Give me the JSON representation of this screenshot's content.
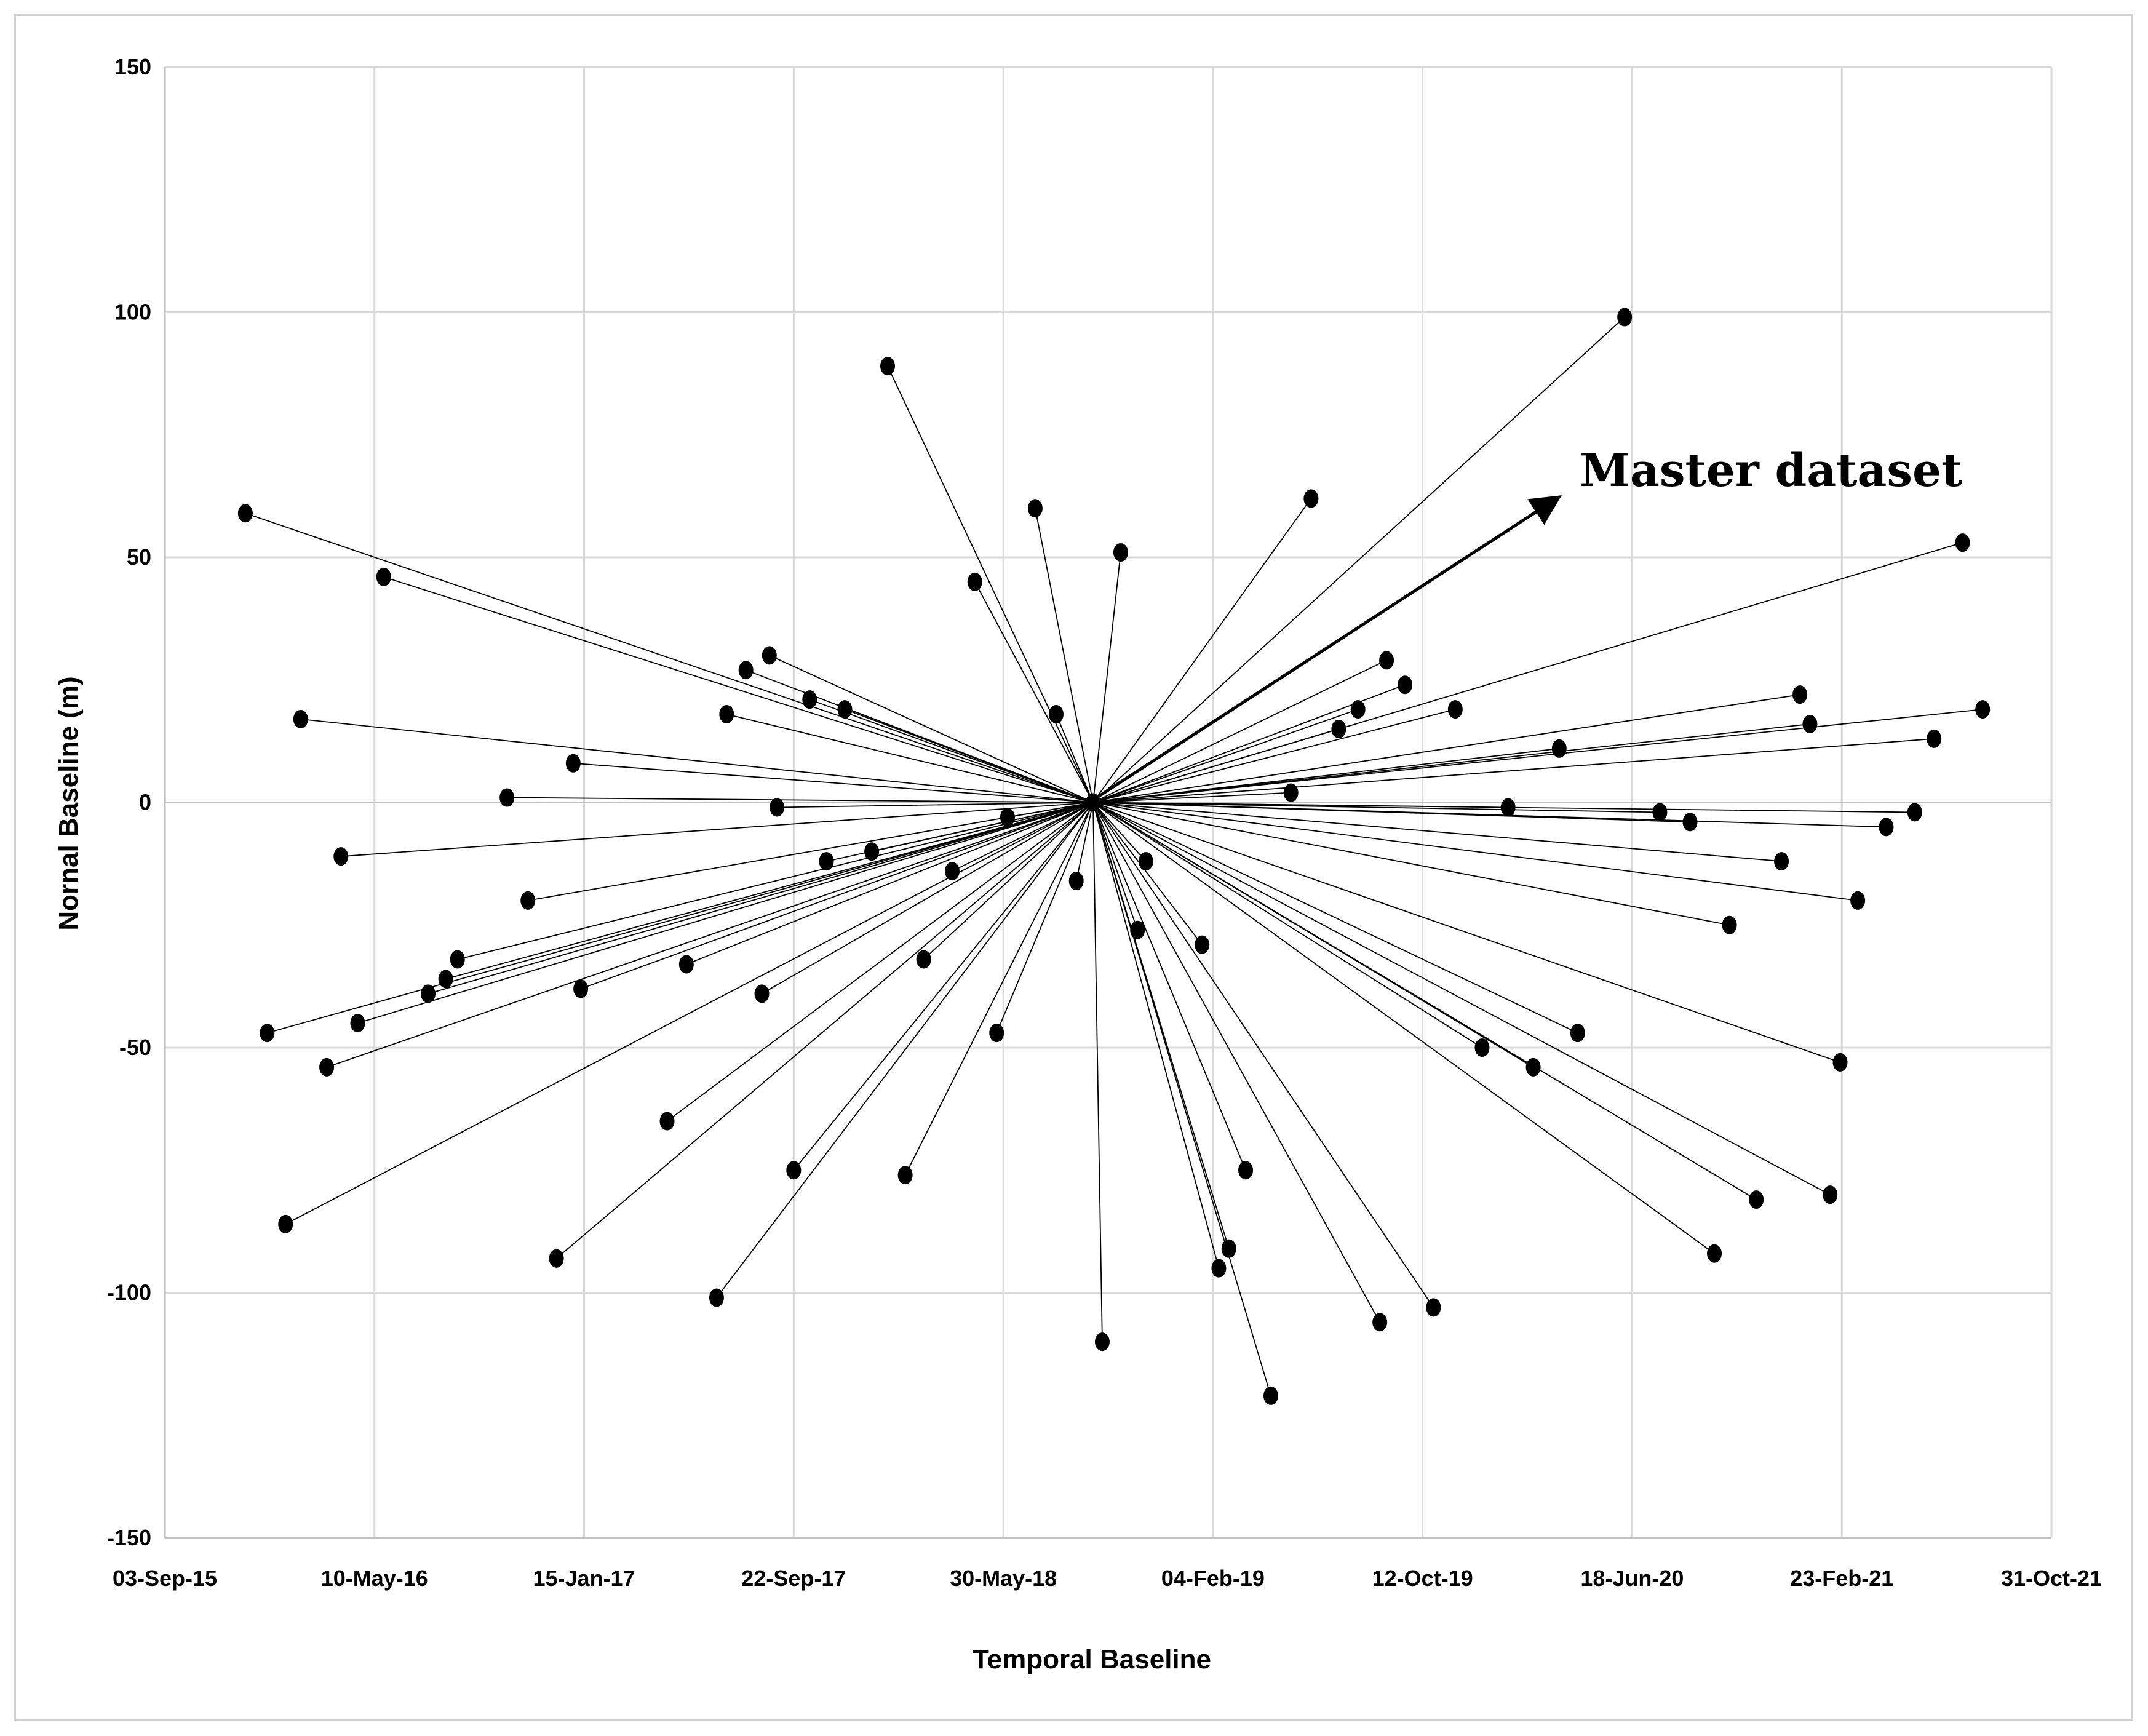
{
  "chart_data": {
    "type": "scatter",
    "xlabel": "Temporal Baseline",
    "ylabel": "Nornal Baseline (m)",
    "xlim": [
      "2015-09-03",
      "2021-10-31"
    ],
    "ylim": [
      -150,
      150
    ],
    "x_ticks": [
      "03-Sep-15",
      "10-May-16",
      "15-Jan-17",
      "22-Sep-17",
      "30-May-18",
      "04-Feb-19",
      "12-Oct-19",
      "18-Jun-20",
      "23-Feb-21",
      "31-Oct-21"
    ],
    "y_ticks": [
      150,
      100,
      50,
      0,
      -50,
      -100,
      -150
    ],
    "grid": true,
    "master": {
      "date": "2018-09-14",
      "baseline": 0
    },
    "annotation": "Master dataset",
    "series": [
      {
        "points": [
          {
            "date": "2015-12-08",
            "baseline": 59
          },
          {
            "date": "2016-05-21",
            "baseline": 46
          },
          {
            "date": "2016-02-12",
            "baseline": 17
          },
          {
            "date": "2017-01-02",
            "baseline": 8
          },
          {
            "date": "2016-10-15",
            "baseline": 1
          },
          {
            "date": "2016-03-31",
            "baseline": -11
          },
          {
            "date": "2016-11-09",
            "baseline": -20
          },
          {
            "date": "2016-08-17",
            "baseline": -32
          },
          {
            "date": "2016-08-03",
            "baseline": -36
          },
          {
            "date": "2016-07-13",
            "baseline": -39
          },
          {
            "date": "2016-04-20",
            "baseline": -45
          },
          {
            "date": "2016-01-03",
            "baseline": -47
          },
          {
            "date": "2016-03-14",
            "baseline": -54
          },
          {
            "date": "2016-01-25",
            "baseline": -86
          },
          {
            "date": "2017-01-11",
            "baseline": -38
          },
          {
            "date": "2016-12-13",
            "baseline": -93
          },
          {
            "date": "2017-05-17",
            "baseline": -33
          },
          {
            "date": "2017-04-24",
            "baseline": -65
          },
          {
            "date": "2017-06-22",
            "baseline": -101
          },
          {
            "date": "2017-07-27",
            "baseline": 27
          },
          {
            "date": "2017-07-04",
            "baseline": 18
          },
          {
            "date": "2017-08-24",
            "baseline": 30
          },
          {
            "date": "2017-08-15",
            "baseline": -39
          },
          {
            "date": "2017-09-02",
            "baseline": -1
          },
          {
            "date": "2017-10-11",
            "baseline": 21
          },
          {
            "date": "2017-10-31",
            "baseline": -12
          },
          {
            "date": "2017-11-22",
            "baseline": 19
          },
          {
            "date": "2017-09-22",
            "baseline": -75
          },
          {
            "date": "2017-12-24",
            "baseline": -10
          },
          {
            "date": "2018-01-12",
            "baseline": 89
          },
          {
            "date": "2018-02-24",
            "baseline": -32
          },
          {
            "date": "2018-02-02",
            "baseline": -76
          },
          {
            "date": "2018-03-30",
            "baseline": -14
          },
          {
            "date": "2018-04-26",
            "baseline": 45
          },
          {
            "date": "2018-06-04",
            "baseline": -3
          },
          {
            "date": "2018-05-22",
            "baseline": -47
          },
          {
            "date": "2018-07-07",
            "baseline": 60
          },
          {
            "date": "2018-08-01",
            "baseline": 18
          },
          {
            "date": "2018-08-25",
            "baseline": -16
          },
          {
            "date": "2018-09-25",
            "baseline": -110
          },
          {
            "date": "2018-10-17",
            "baseline": 51
          },
          {
            "date": "2018-11-06",
            "baseline": -26
          },
          {
            "date": "2018-11-16",
            "baseline": -12
          },
          {
            "date": "2019-01-22",
            "baseline": -29
          },
          {
            "date": "2019-02-11",
            "baseline": -95
          },
          {
            "date": "2019-02-23",
            "baseline": -91
          },
          {
            "date": "2019-03-15",
            "baseline": -75
          },
          {
            "date": "2019-04-14",
            "baseline": -121
          },
          {
            "date": "2019-05-08",
            "baseline": 2
          },
          {
            "date": "2019-06-01",
            "baseline": 62
          },
          {
            "date": "2019-07-04",
            "baseline": 15
          },
          {
            "date": "2019-07-27",
            "baseline": 19
          },
          {
            "date": "2019-08-30",
            "baseline": 29
          },
          {
            "date": "2019-09-21",
            "baseline": 24
          },
          {
            "date": "2019-08-22",
            "baseline": -106
          },
          {
            "date": "2019-10-25",
            "baseline": -103
          },
          {
            "date": "2019-11-20",
            "baseline": 19
          },
          {
            "date": "2019-12-22",
            "baseline": -50
          },
          {
            "date": "2020-01-22",
            "baseline": -1
          },
          {
            "date": "2020-02-21",
            "baseline": -54
          },
          {
            "date": "2020-03-23",
            "baseline": 11
          },
          {
            "date": "2020-04-14",
            "baseline": -47
          },
          {
            "date": "2020-06-09",
            "baseline": 99
          },
          {
            "date": "2020-07-21",
            "baseline": -2
          },
          {
            "date": "2020-08-26",
            "baseline": -4
          },
          {
            "date": "2020-09-24",
            "baseline": -92
          },
          {
            "date": "2020-10-12",
            "baseline": -25
          },
          {
            "date": "2020-11-13",
            "baseline": -81
          },
          {
            "date": "2020-12-13",
            "baseline": -12
          },
          {
            "date": "2021-01-04",
            "baseline": 22
          },
          {
            "date": "2021-01-16",
            "baseline": 16
          },
          {
            "date": "2021-02-09",
            "baseline": -80
          },
          {
            "date": "2021-02-21",
            "baseline": -53
          },
          {
            "date": "2021-03-14",
            "baseline": -20
          },
          {
            "date": "2021-04-17",
            "baseline": -5
          },
          {
            "date": "2021-05-21",
            "baseline": -2
          },
          {
            "date": "2021-06-13",
            "baseline": 13
          },
          {
            "date": "2021-07-17",
            "baseline": 53
          },
          {
            "date": "2021-08-10",
            "baseline": 19
          }
        ]
      }
    ]
  }
}
